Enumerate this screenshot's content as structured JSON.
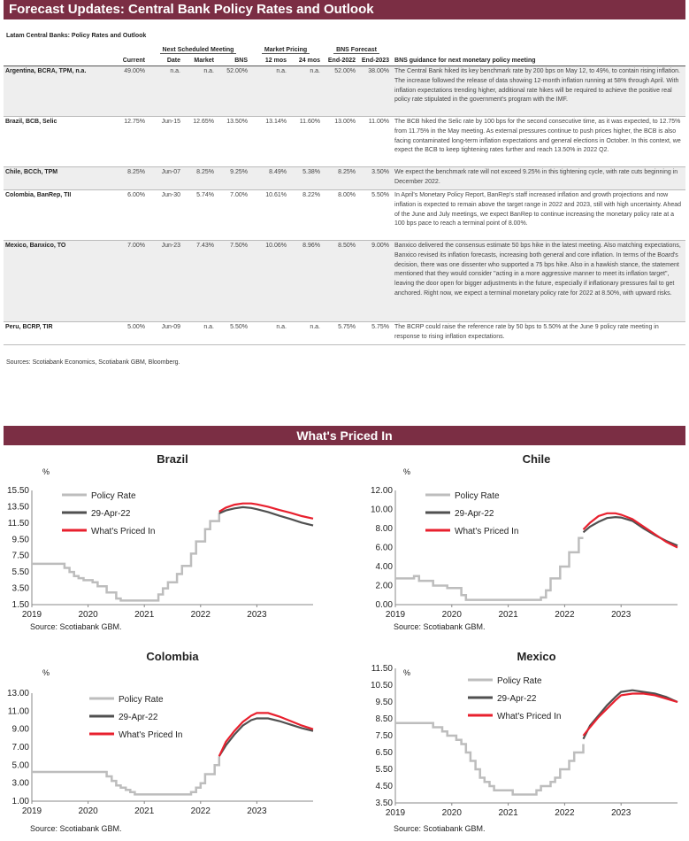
{
  "header": {
    "title": "Forecast Updates: Central Bank Policy Rates and Outlook"
  },
  "table": {
    "caption": "Latam Central Banks: Policy Rates and Outlook",
    "group_headers": {
      "next_meeting": "Next Scheduled Meeting",
      "market_pricing": "Market Pricing",
      "bns_forecast": "BNS Forecast"
    },
    "columns": [
      "Current",
      "Date",
      "Market",
      "BNS",
      "12 mos",
      "24 mos",
      "End-2022",
      "End-2023",
      "BNS guidance for next monetary policy meeting"
    ],
    "rows": [
      {
        "bank": "Argentina, BCRA, TPM, n.a.",
        "current": "49.00%",
        "date": "n.a.",
        "market": "n.a.",
        "bns": "52.00%",
        "m12": "n.a.",
        "m24": "n.a.",
        "end2022": "52.00%",
        "end2023": "38.00%",
        "guidance": "The Central Bank hiked its key benchmark rate by 200 bps on May 12, to 49%, to contain rising inflation. The increase followed the release of data showing 12-month inflation running at 58% through April. With inflation expectations trending higher, additional rate hikes will be required to achieve the positive real policy rate stipulated in the government's program with the IMF."
      },
      {
        "bank": "Brazil, BCB, Selic",
        "current": "12.75%",
        "date": "Jun-15",
        "market": "12.65%",
        "bns": "13.50%",
        "m12": "13.14%",
        "m24": "11.60%",
        "end2022": "13.00%",
        "end2023": "11.00%",
        "guidance": "The BCB hiked the Selic rate by 100 bps for the second consecutive time, as it was expected, to 12.75% from 11.75% in the May meeting. As external pressures continue to push prices higher, the BCB is also facing contaminated long-term inflation expectations and general elections in October. In this context, we expect the BCB to keep tightening rates further and reach 13.50% in 2022 Q2."
      },
      {
        "bank": "Chile, BCCh, TPM",
        "current": "8.25%",
        "date": "Jun-07",
        "market": "8.25%",
        "bns": "9.25%",
        "m12": "8.49%",
        "m24": "5.38%",
        "end2022": "8.25%",
        "end2023": "3.50%",
        "guidance": "We expect the benchmark rate will not exceed 9.25% in this tightening cycle, with rate cuts beginning in December 2022."
      },
      {
        "bank": "Colombia, BanRep, TII",
        "current": "6.00%",
        "date": "Jun-30",
        "market": "5.74%",
        "bns": "7.00%",
        "m12": "10.61%",
        "m24": "8.22%",
        "end2022": "8.00%",
        "end2023": "5.50%",
        "guidance": "In April's Monetary Policy Report, BanRep's staff increased inflation and growth projections and now inflation is expected to remain above the target range in 2022 and 2023, still with high uncertainty. Ahead of the June and July meetings, we expect BanRep to continue increasing the monetary policy rate at a 100 bps pace to reach a terminal point of 8.00%."
      },
      {
        "bank": "Mexico, Banxico, TO",
        "current": "7.00%",
        "date": "Jun-23",
        "market": "7.43%",
        "bns": "7.50%",
        "m12": "10.06%",
        "m24": "8.96%",
        "end2022": "8.50%",
        "end2023": "9.00%",
        "guidance": "Banxico delivered the consensus estimate 50 bps hike in the latest meeting. Also matching expectations, Banxico revised its inflation forecasts, increasing both general and core inflation. In terms of the Board's decision, there was one dissenter who supported a 75 bps hike. Also in a hawkish stance, the statement mentioned that they would consider \"acting in a more aggressive manner to meet its inflation target\", leaving the door open for bigger adjustments in the future, especially if inflationary pressures fail to get anchored. Right now, we expect a terminal monetary policy rate for 2022 at 8.50%, with upward risks."
      },
      {
        "bank": "Peru, BCRP, TIR",
        "current": "5.00%",
        "date": "Jun-09",
        "market": "n.a.",
        "bns": "5.50%",
        "m12": "n.a.",
        "m24": "n.a.",
        "end2022": "5.75%",
        "end2023": "5.75%",
        "guidance": "The BCRP could raise the reference rate by 50 bps to 5.50% at the June 9 policy rate meeting in response to rising inflation expectations."
      }
    ],
    "source": "Sources: Scotiabank Economics, Scotiabank GBM, Bloomberg."
  },
  "section2": {
    "title": "What's Priced In"
  },
  "colors": {
    "banner": "#7b2e44",
    "policy": "#bdbdbd",
    "apr": "#505050",
    "priced": "#e8202e"
  },
  "chart_data": [
    {
      "id": "brazil",
      "type": "line",
      "title": "Brazil",
      "ylabel": "%",
      "source": "Source: Scotiabank GBM.",
      "legend": [
        "Policy Rate",
        "29-Apr-22",
        "What's Priced In"
      ],
      "yticks": [
        "15.50",
        "13.50",
        "11.50",
        "9.50",
        "7.50",
        "5.50",
        "3.50",
        "1.50"
      ],
      "ylim": [
        1.5,
        15.5
      ],
      "xticks": [
        "2019",
        "2020",
        "2021",
        "2022",
        "2023"
      ],
      "xlim": [
        2019,
        2024
      ],
      "series": [
        {
          "name": "Policy Rate",
          "x": [
            2019,
            2019.5,
            2019.58,
            2019.67,
            2019.75,
            2019.83,
            2019.92,
            2020.0,
            2020.08,
            2020.17,
            2020.25,
            2020.33,
            2020.42,
            2020.5,
            2020.58,
            2020.67,
            2021.17,
            2021.25,
            2021.33,
            2021.42,
            2021.5,
            2021.58,
            2021.67,
            2021.75,
            2021.83,
            2021.92,
            2022.0,
            2022.08,
            2022.17,
            2022.25,
            2022.33
          ],
          "y": [
            6.5,
            6.5,
            6.0,
            5.5,
            5.0,
            4.75,
            4.5,
            4.5,
            4.25,
            3.75,
            3.75,
            3.0,
            3.0,
            2.25,
            2.0,
            2.0,
            2.0,
            2.75,
            3.5,
            4.25,
            4.25,
            5.25,
            6.25,
            6.25,
            7.75,
            9.25,
            9.25,
            10.75,
            11.75,
            11.75,
            12.75
          ]
        },
        {
          "name": "29-Apr-22",
          "x": [
            2022.33,
            2022.45,
            2022.6,
            2022.75,
            2022.9,
            2023.0,
            2023.2,
            2023.4,
            2023.6,
            2023.8,
            2024.0
          ],
          "y": [
            12.7,
            13.05,
            13.3,
            13.45,
            13.35,
            13.2,
            12.85,
            12.4,
            12.0,
            11.55,
            11.2
          ]
        },
        {
          "name": "What's Priced In",
          "x": [
            2022.33,
            2022.45,
            2022.6,
            2022.75,
            2022.9,
            2023.0,
            2023.2,
            2023.4,
            2023.6,
            2023.8,
            2024.0
          ],
          "y": [
            12.9,
            13.4,
            13.75,
            13.9,
            13.9,
            13.8,
            13.5,
            13.1,
            12.75,
            12.35,
            12.05
          ]
        }
      ]
    },
    {
      "id": "chile",
      "type": "line",
      "title": "Chile",
      "ylabel": "%",
      "source": "Source: Scotiabank GBM.",
      "legend": [
        "Policy Rate",
        "29-Apr-22",
        "What's Priced In"
      ],
      "yticks": [
        "12.00",
        "10.00",
        "8.00",
        "6.00",
        "4.00",
        "2.00",
        "0.00"
      ],
      "ylim": [
        0,
        12
      ],
      "xticks": [
        "2019",
        "2020",
        "2021",
        "2022",
        "2023"
      ],
      "xlim": [
        2019,
        2024
      ],
      "series": [
        {
          "name": "Policy Rate",
          "x": [
            2019,
            2019.33,
            2019.42,
            2019.67,
            2019.75,
            2019.92,
            2020.17,
            2020.25,
            2021.5,
            2021.58,
            2021.67,
            2021.75,
            2021.83,
            2021.92,
            2022.0,
            2022.08,
            2022.17,
            2022.25,
            2022.33
          ],
          "y": [
            2.75,
            3.0,
            2.5,
            2.0,
            2.0,
            1.75,
            1.0,
            0.5,
            0.5,
            0.75,
            1.5,
            2.75,
            2.75,
            4.0,
            4.0,
            5.5,
            5.5,
            7.0,
            7.0
          ]
        },
        {
          "name": "29-Apr-22",
          "x": [
            2022.33,
            2022.45,
            2022.6,
            2022.75,
            2022.9,
            2023.0,
            2023.2,
            2023.4,
            2023.6,
            2023.8,
            2024.0
          ],
          "y": [
            7.6,
            8.2,
            8.7,
            9.1,
            9.2,
            9.15,
            8.8,
            8.0,
            7.3,
            6.7,
            6.2
          ]
        },
        {
          "name": "What's Priced In",
          "x": [
            2022.33,
            2022.45,
            2022.6,
            2022.75,
            2022.9,
            2023.0,
            2023.2,
            2023.4,
            2023.6,
            2023.8,
            2024.0
          ],
          "y": [
            7.9,
            8.6,
            9.3,
            9.6,
            9.6,
            9.45,
            9.0,
            8.2,
            7.4,
            6.6,
            6.0
          ]
        }
      ]
    },
    {
      "id": "colombia",
      "type": "line",
      "title": "Colombia",
      "ylabel": "%",
      "source": "Source: Scotiabank GBM.",
      "legend": [
        "Policy Rate",
        "29-Apr-22",
        "What's Priced In"
      ],
      "yticks": [
        "13.00",
        "11.00",
        "9.00",
        "7.00",
        "5.00",
        "3.00",
        "1.00"
      ],
      "ylim": [
        1,
        13
      ],
      "xticks": [
        "2019",
        "2020",
        "2021",
        "2022",
        "2023"
      ],
      "xlim": [
        2019,
        2024
      ],
      "series": [
        {
          "name": "Policy Rate",
          "x": [
            2019,
            2020.25,
            2020.33,
            2020.42,
            2020.5,
            2020.58,
            2020.67,
            2020.75,
            2020.83,
            2021.75,
            2021.83,
            2021.92,
            2022.0,
            2022.08,
            2022.17,
            2022.25,
            2022.33
          ],
          "y": [
            4.25,
            4.25,
            3.75,
            3.25,
            2.75,
            2.5,
            2.25,
            2.0,
            1.75,
            1.75,
            2.0,
            2.5,
            3.0,
            4.0,
            4.0,
            5.0,
            6.0
          ]
        },
        {
          "name": "29-Apr-22",
          "x": [
            2022.33,
            2022.45,
            2022.6,
            2022.75,
            2022.9,
            2023.0,
            2023.2,
            2023.4,
            2023.6,
            2023.8,
            2024.0
          ],
          "y": [
            6.0,
            7.2,
            8.4,
            9.4,
            10.0,
            10.2,
            10.2,
            9.9,
            9.5,
            9.1,
            8.8
          ]
        },
        {
          "name": "What's Priced In",
          "x": [
            2022.33,
            2022.45,
            2022.6,
            2022.75,
            2022.9,
            2023.0,
            2023.2,
            2023.4,
            2023.6,
            2023.8,
            2024.0
          ],
          "y": [
            6.0,
            7.6,
            8.8,
            9.8,
            10.5,
            10.8,
            10.8,
            10.4,
            9.9,
            9.4,
            9.0
          ]
        }
      ]
    },
    {
      "id": "mexico",
      "type": "line",
      "title": "Mexico",
      "ylabel": "%",
      "source": "Source: Scotiabank GBM.",
      "legend": [
        "Policy Rate",
        "29-Apr-22",
        "What's Priced In"
      ],
      "yticks": [
        "11.50",
        "10.50",
        "9.50",
        "8.50",
        "7.50",
        "6.50",
        "5.50",
        "4.50",
        "3.50"
      ],
      "ylim": [
        3.5,
        11.5
      ],
      "xticks": [
        "2019",
        "2020",
        "2021",
        "2022",
        "2023"
      ],
      "xlim": [
        2019,
        2024
      ],
      "series": [
        {
          "name": "Policy Rate",
          "x": [
            2019,
            2019.58,
            2019.67,
            2019.83,
            2019.92,
            2020.08,
            2020.17,
            2020.25,
            2020.33,
            2020.42,
            2020.5,
            2020.58,
            2020.67,
            2020.75,
            2020.92,
            2021.08,
            2021.42,
            2021.5,
            2021.58,
            2021.67,
            2021.75,
            2021.83,
            2021.92,
            2022.0,
            2022.08,
            2022.17,
            2022.25,
            2022.33
          ],
          "y": [
            8.25,
            8.25,
            8.0,
            7.75,
            7.5,
            7.25,
            7.0,
            6.5,
            6.0,
            5.5,
            5.0,
            4.75,
            4.5,
            4.25,
            4.25,
            4.0,
            4.0,
            4.25,
            4.5,
            4.5,
            4.75,
            5.0,
            5.5,
            5.5,
            6.0,
            6.5,
            6.5,
            7.0
          ]
        },
        {
          "name": "29-Apr-22",
          "x": [
            2022.33,
            2022.45,
            2022.6,
            2022.75,
            2022.9,
            2023.0,
            2023.2,
            2023.4,
            2023.6,
            2023.8,
            2024.0
          ],
          "y": [
            7.3,
            8.1,
            8.7,
            9.3,
            9.8,
            10.1,
            10.2,
            10.1,
            10.0,
            9.8,
            9.5
          ]
        },
        {
          "name": "What's Priced In",
          "x": [
            2022.33,
            2022.45,
            2022.6,
            2022.75,
            2022.9,
            2023.0,
            2023.2,
            2023.4,
            2023.6,
            2023.8,
            2024.0
          ],
          "y": [
            7.5,
            8.0,
            8.6,
            9.1,
            9.6,
            9.9,
            10.0,
            10.0,
            9.9,
            9.7,
            9.5
          ]
        }
      ]
    }
  ]
}
